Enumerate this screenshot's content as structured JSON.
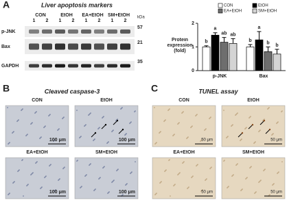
{
  "panel_a": {
    "letter": "A",
    "title": "Liver apoptosis markers",
    "blot": {
      "groups": [
        "CON",
        "EtOH",
        "EA+EtOH",
        "SM+EtOH"
      ],
      "lanes": [
        "1",
        "2"
      ],
      "rows": [
        "p-JNK",
        "Bax",
        "GAPDH"
      ],
      "kda_label": "kDa",
      "kda": [
        57,
        21,
        35
      ]
    },
    "chart_data": {
      "type": "bar",
      "y_label": "Protein expression (fold)",
      "categories": [
        "p-JNK",
        "Bax"
      ],
      "series": [
        {
          "name": "CON",
          "color": "#ffffff",
          "values": [
            1.0,
            1.0
          ],
          "errors": [
            0.05,
            0.1
          ],
          "letters": [
            "b",
            "b"
          ]
        },
        {
          "name": "EtOH",
          "color": "#000000",
          "values": [
            1.5,
            1.3
          ],
          "errors": [
            0.1,
            0.35
          ],
          "letters": [
            "a",
            "a"
          ]
        },
        {
          "name": "EA+EtOH",
          "color": "#6e6e6e",
          "values": [
            1.2,
            0.8
          ],
          "errors": [
            0.2,
            0.2
          ],
          "letters": [
            "ab",
            "b"
          ]
        },
        {
          "name": "SM+EtOH",
          "color": "#d4d4d4",
          "values": [
            1.15,
            0.7
          ],
          "errors": [
            0.2,
            0.2
          ],
          "letters": [
            "ab",
            "b"
          ]
        }
      ],
      "ylim": [
        0,
        2
      ],
      "yticks": [
        0,
        1,
        2
      ]
    }
  },
  "panel_b": {
    "letter": "B",
    "title": "Cleaved caspase-3",
    "images": [
      {
        "label": "CON",
        "scale": "100 μm"
      },
      {
        "label": "EtOH",
        "scale": "100 μm"
      },
      {
        "label": "EA+EtOH",
        "scale": "100 μm"
      },
      {
        "label": "SM+EtOH",
        "scale": "100 μm"
      }
    ]
  },
  "panel_c": {
    "letter": "C",
    "title": "TUNEL assay",
    "images": [
      {
        "label": "CON",
        "scale": "50 μm"
      },
      {
        "label": "EtOH",
        "scale": "50 μm"
      },
      {
        "label": "EA+EtOH",
        "scale": "50 μm"
      },
      {
        "label": "SM+EtOH",
        "scale": "50 μm"
      }
    ]
  }
}
